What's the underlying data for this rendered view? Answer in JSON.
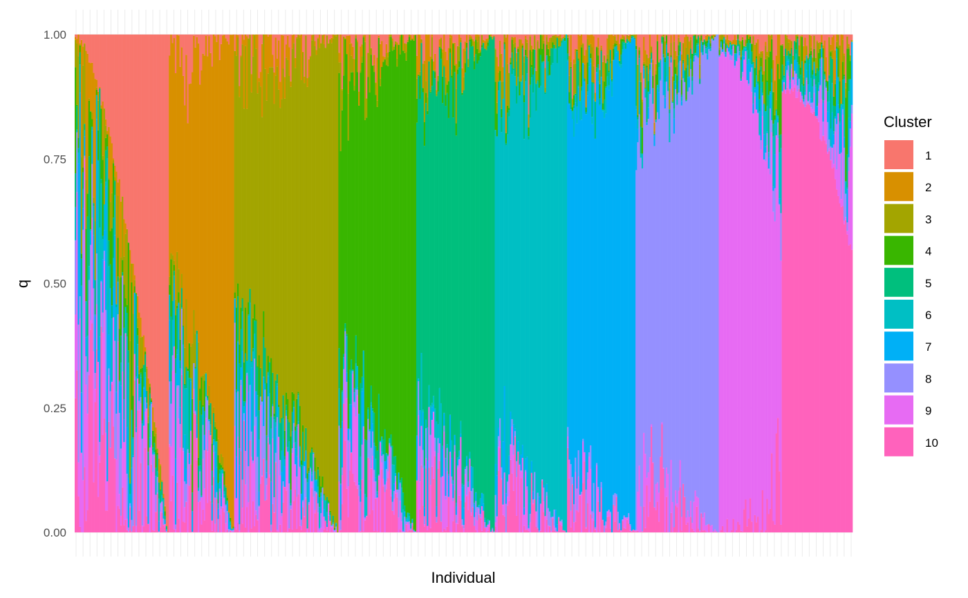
{
  "chart_data": {
    "type": "bar",
    "stacked": true,
    "xlabel": "Individual",
    "ylabel": "q",
    "ylim": [
      0,
      1
    ],
    "yticks": [
      "0.00",
      "0.25",
      "0.50",
      "0.75",
      "1.00"
    ],
    "ytick_values": [
      0,
      0.25,
      0.5,
      0.75,
      1.0
    ],
    "grid": true,
    "theme": "minimal",
    "legend": {
      "title": "Cluster",
      "position": "right",
      "entries": [
        "1",
        "2",
        "3",
        "4",
        "5",
        "6",
        "7",
        "8",
        "9",
        "10"
      ]
    },
    "colors": [
      "#F8766D",
      "#D89000",
      "#A3A500",
      "#39B600",
      "#00BF7D",
      "#00BFC4",
      "#00B0F6",
      "#9590FF",
      "#E76BF3",
      "#FF62BC"
    ],
    "groups": [
      {
        "cluster": "1",
        "fraction_of_individuals": 0.121,
        "dominant_q_range": [
          0.0,
          1.0
        ]
      },
      {
        "cluster": "2",
        "fraction_of_individuals": 0.084,
        "dominant_q_range": [
          0.43,
          1.0
        ]
      },
      {
        "cluster": "3",
        "fraction_of_individuals": 0.134,
        "dominant_q_range": [
          0.5,
          1.0
        ]
      },
      {
        "cluster": "4",
        "fraction_of_individuals": 0.1,
        "dominant_q_range": [
          0.56,
          1.0
        ]
      },
      {
        "cluster": "5",
        "fraction_of_individuals": 0.101,
        "dominant_q_range": [
          0.62,
          1.0
        ]
      },
      {
        "cluster": "6",
        "fraction_of_individuals": 0.093,
        "dominant_q_range": [
          0.67,
          1.0
        ]
      },
      {
        "cluster": "7",
        "fraction_of_individuals": 0.088,
        "dominant_q_range": [
          0.72,
          1.0
        ]
      },
      {
        "cluster": "8",
        "fraction_of_individuals": 0.107,
        "dominant_q_range": [
          0.71,
          1.0
        ]
      },
      {
        "cluster": "9",
        "fraction_of_individuals": 0.081,
        "dominant_q_range": [
          0.52,
          0.96
        ]
      },
      {
        "cluster": "10",
        "fraction_of_individuals": 0.091,
        "dominant_q_range": [
          0.56,
          0.89
        ]
      }
    ]
  }
}
